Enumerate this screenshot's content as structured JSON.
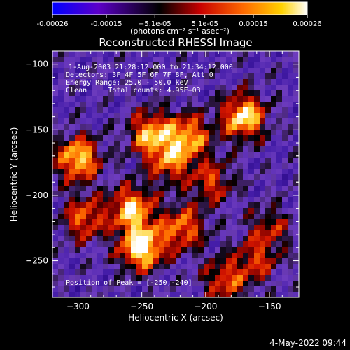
{
  "chart_data": {
    "type": "heatmap",
    "title": "Reconstructed RHESSI Image",
    "xlabel": "Heliocentric X (arcsec)",
    "ylabel": "Heliocentric Y (arcsec)",
    "xlim": [
      -320,
      -127
    ],
    "ylim": [
      -278,
      -90
    ],
    "x_ticks": [
      -300,
      -250,
      -200,
      -150
    ],
    "x_tick_labels": [
      "−300",
      "−250",
      "−200",
      "−150"
    ],
    "y_ticks": [
      -100,
      -150,
      -200,
      -250
    ],
    "y_tick_labels": [
      "−100",
      "−150",
      "−200",
      "−250"
    ],
    "colorbar": {
      "range": [
        -0.00026,
        0.00026
      ],
      "ticks": [
        -0.00026,
        -0.00015,
        -5.1e-05,
        5.1e-05,
        0.00015,
        0.00026
      ],
      "tick_labels": [
        "-0.00026",
        "-0.00015",
        "−5.1e-05",
        "5.1e-05",
        "0.00015",
        "0.00026"
      ],
      "unit_label": "(photons cm⁻² s⁻¹ asec⁻²)",
      "colors": [
        "#0000ff",
        "#5c00c8",
        "#000000",
        "#c80000",
        "#ff6a00",
        "#ffd200",
        "#ffffff"
      ]
    },
    "annotations": {
      "line1": "1-Aug-2003 21:28:12.000 to 21:34:12.000",
      "line2": "Detectors: 3F 4F 5F 6F 7F 8F, Att 0",
      "line3": "Energy Range: 25.0 - 50.0 keV",
      "line4": "Clean     Total counts: 4.95E+03",
      "peak": "Position of Peak = [-250,-240]"
    },
    "bright_sources": [
      {
        "x": -250,
        "y": -240,
        "intensity": 1.0
      },
      {
        "x": -170,
        "y": -140,
        "intensity": 0.9
      },
      {
        "x": -300,
        "y": -172,
        "intensity": 0.85
      },
      {
        "x": -258,
        "y": -210,
        "intensity": 0.8
      },
      {
        "x": -243,
        "y": -153,
        "intensity": 0.75
      },
      {
        "x": -213,
        "y": -155,
        "intensity": 0.7
      },
      {
        "x": -218,
        "y": -225,
        "intensity": 0.65
      },
      {
        "x": -295,
        "y": -218,
        "intensity": 0.6
      },
      {
        "x": -228,
        "y": -175,
        "intensity": 0.55
      },
      {
        "x": -195,
        "y": -190,
        "intensity": 0.5
      },
      {
        "x": -185,
        "y": -265,
        "intensity": 0.55
      },
      {
        "x": -160,
        "y": -250,
        "intensity": 0.45
      },
      {
        "x": -150,
        "y": -225,
        "intensity": 0.4
      }
    ]
  },
  "footer": {
    "date": "4-May-2022 09:44"
  }
}
